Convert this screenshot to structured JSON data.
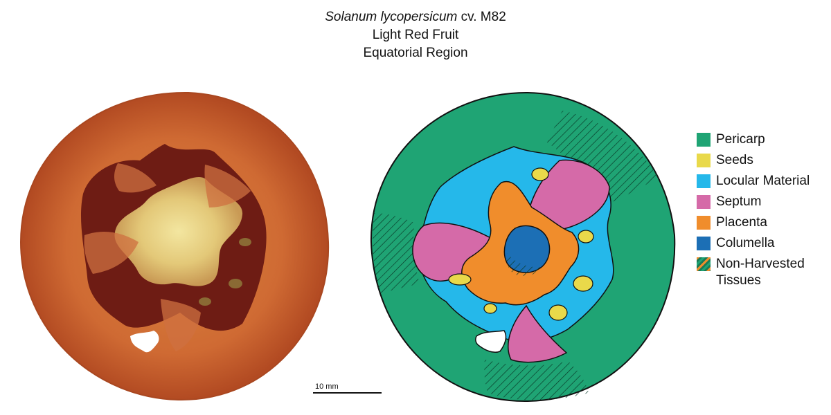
{
  "title": {
    "species": "Solanum lycopersicum",
    "cultivar": " cv. M82",
    "line2": "Light Red Fruit",
    "line3": "Equatorial Region"
  },
  "scale_bar": {
    "label": "10 mm"
  },
  "legend": [
    {
      "label": "Pericarp",
      "color": "#1fa474"
    },
    {
      "label": "Seeds",
      "color": "#e9d94a"
    },
    {
      "label": "Locular Material",
      "color": "#25b8ea"
    },
    {
      "label": "Septum",
      "color": "#d56aa8"
    },
    {
      "label": "Placenta",
      "color": "#f08d2c"
    },
    {
      "label": "Columella",
      "color": "#1c6fb5"
    },
    {
      "label": "Non-Harvested",
      "label2": "Tissues",
      "color": "hatched"
    }
  ]
}
